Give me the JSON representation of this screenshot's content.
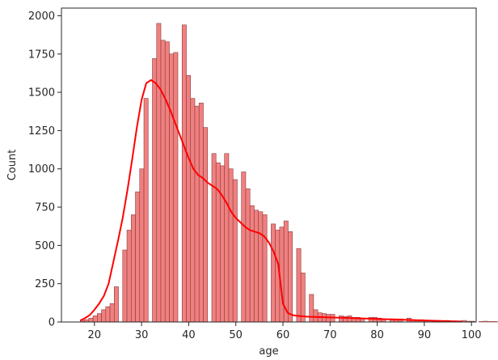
{
  "chart_data": {
    "type": "bar",
    "subtype": "histogram_with_kde",
    "title": "",
    "xlabel": "age",
    "ylabel": "Count",
    "xlim": [
      13,
      101
    ],
    "ylim": [
      0,
      2050
    ],
    "x_ticks": [
      20,
      30,
      40,
      50,
      60,
      70,
      80,
      90,
      100
    ],
    "y_ticks": [
      0,
      250,
      500,
      750,
      1000,
      1250,
      1500,
      1750,
      2000
    ],
    "grid": false,
    "legend": "none",
    "colors": {
      "bar_fill": "#f08080",
      "bar_edge": "#8b3a3a",
      "kde_line": "#ff0000",
      "axis": "#262626"
    },
    "bins": {
      "start": 17,
      "width": 0.9,
      "counts": [
        10,
        15,
        25,
        40,
        55,
        80,
        100,
        120,
        230,
        0,
        470,
        600,
        700,
        850,
        1000,
        1460,
        0,
        1720,
        1950,
        1840,
        1830,
        1750,
        1760,
        0,
        1940,
        1610,
        1460,
        1410,
        1430,
        1270,
        0,
        1100,
        1040,
        1020,
        1100,
        1000,
        930,
        0,
        980,
        870,
        760,
        730,
        720,
        700,
        0,
        640,
        600,
        620,
        660,
        590,
        0,
        480,
        320,
        0,
        180,
        80,
        60,
        55,
        50,
        50,
        0,
        40,
        35,
        40,
        30,
        30,
        25,
        0,
        30,
        30,
        25,
        20,
        0,
        20,
        20,
        20,
        0,
        25,
        15,
        10,
        15,
        10,
        0,
        8,
        10,
        8,
        10,
        0,
        5,
        5,
        10,
        5,
        5,
        0,
        3,
        5,
        3,
        3,
        2
      ]
    },
    "kde": {
      "x": [
        17,
        18,
        19,
        20,
        21,
        22,
        23,
        24,
        25,
        26,
        27,
        28,
        29,
        30,
        31,
        32,
        33,
        34,
        35,
        36,
        37,
        38,
        39,
        40,
        41,
        42,
        43,
        44,
        45,
        46,
        47,
        48,
        49,
        50,
        51,
        52,
        53,
        54,
        55,
        56,
        57,
        58,
        59,
        60,
        61,
        62,
        63,
        65,
        70,
        75,
        80,
        85,
        90,
        95,
        98
      ],
      "y": [
        10,
        25,
        45,
        80,
        120,
        170,
        250,
        390,
        530,
        680,
        860,
        1060,
        1270,
        1450,
        1560,
        1580,
        1560,
        1520,
        1460,
        1390,
        1310,
        1230,
        1150,
        1070,
        1000,
        960,
        940,
        910,
        890,
        870,
        830,
        780,
        720,
        680,
        650,
        620,
        600,
        590,
        580,
        560,
        520,
        460,
        380,
        120,
        60,
        45,
        40,
        35,
        30,
        25,
        20,
        15,
        10,
        5,
        3
      ]
    }
  }
}
